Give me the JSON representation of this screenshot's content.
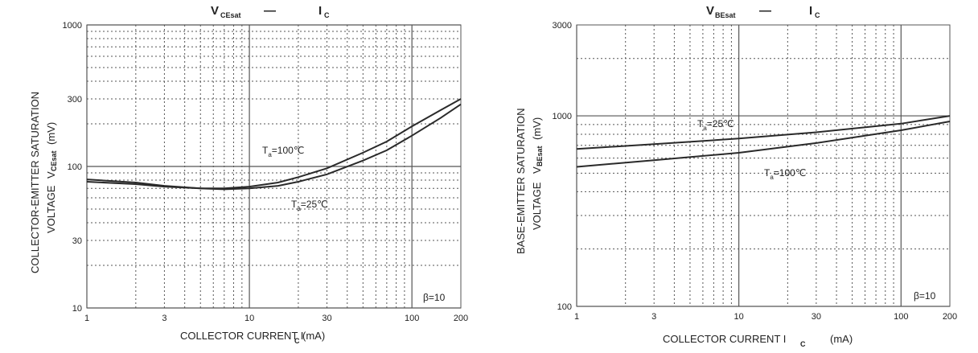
{
  "charts": [
    {
      "title_main": "V",
      "title_sub": "CEsat",
      "title_sep": "—",
      "title_rhs": "I",
      "title_rhs_sub": "C",
      "ylabel_line1": "COLLECTOR-EMITTER SATURATION",
      "ylabel_line2_a": "VOLTAGE",
      "ylabel_line2_sym": "V",
      "ylabel_line2_sub": "CEsat",
      "ylabel_line2_unit": "(mV)",
      "xlabel_text": "COLLECTOR CURRENT I",
      "xlabel_sub": "C",
      "xlabel_unit": "(mA)",
      "note": "β=10"
    },
    {
      "title_main": "V",
      "title_sub": "BEsat",
      "title_sep": "—",
      "title_rhs": "I",
      "title_rhs_sub": "C",
      "ylabel_line1": "BASE-EMITTER SATURATION",
      "ylabel_line2_a": "VOLTAGE",
      "ylabel_line2_sym": "V",
      "ylabel_line2_sub": "BEsat",
      "ylabel_line2_unit": "(mV)",
      "xlabel_text": "COLLECTOR CURRENT I",
      "xlabel_sub": "C",
      "xlabel_unit": "(mA)",
      "note": "β=10"
    }
  ],
  "chart_data": [
    {
      "type": "line",
      "xscale": "log",
      "yscale": "log",
      "xlim": [
        1,
        200
      ],
      "ylim": [
        10,
        1000
      ],
      "xticks": [
        1,
        3,
        10,
        30,
        100,
        200
      ],
      "xtick_labels": [
        "1",
        "3",
        "10",
        "30",
        "100",
        "200"
      ],
      "yticks": [
        10,
        30,
        100,
        300,
        1000
      ],
      "ytick_labels": [
        "10",
        "30",
        "100",
        "300",
        "1000"
      ],
      "grid": true,
      "series": [
        {
          "name": "Ta=100℃",
          "x": [
            1,
            2,
            3,
            5,
            7,
            10,
            15,
            20,
            30,
            50,
            70,
            100,
            150,
            200
          ],
          "y": [
            81,
            77,
            73,
            70,
            70,
            72,
            77,
            84,
            97,
            125,
            150,
            192,
            250,
            300
          ]
        },
        {
          "name": "Ta=25℃",
          "x": [
            1,
            2,
            3,
            5,
            7,
            10,
            15,
            20,
            30,
            50,
            70,
            100,
            150,
            200
          ],
          "y": [
            78,
            75,
            72,
            70,
            69,
            70,
            73,
            78,
            88,
            110,
            130,
            165,
            220,
            275
          ]
        }
      ],
      "labels": [
        {
          "series": 0,
          "prefix": "T",
          "sub": "a",
          "text": "=100",
          "unit": "℃"
        },
        {
          "series": 1,
          "prefix": "T",
          "sub": "a",
          "text": "=25",
          "unit": "℃"
        }
      ]
    },
    {
      "type": "line",
      "xscale": "log",
      "yscale": "log",
      "xlim": [
        1,
        200
      ],
      "ylim": [
        100,
        3000
      ],
      "xticks": [
        1,
        3,
        10,
        30,
        100,
        200
      ],
      "xtick_labels": [
        "1",
        "3",
        "10",
        "30",
        "100",
        "200"
      ],
      "yticks": [
        100,
        1000,
        3000
      ],
      "ytick_labels": [
        "100",
        "1000",
        "3000"
      ],
      "grid": true,
      "series": [
        {
          "name": "Ta=25℃",
          "x": [
            1,
            3,
            10,
            30,
            100,
            200
          ],
          "y": [
            670,
            710,
            760,
            820,
            910,
            1000
          ]
        },
        {
          "name": "Ta=100℃",
          "x": [
            1,
            3,
            10,
            30,
            100,
            200
          ],
          "y": [
            540,
            585,
            640,
            720,
            840,
            935
          ]
        }
      ],
      "labels": [
        {
          "series": 0,
          "prefix": "T",
          "sub": "a",
          "text": "=25",
          "unit": "℃"
        },
        {
          "series": 1,
          "prefix": "T",
          "sub": "a",
          "text": "=100",
          "unit": "℃"
        }
      ]
    }
  ]
}
